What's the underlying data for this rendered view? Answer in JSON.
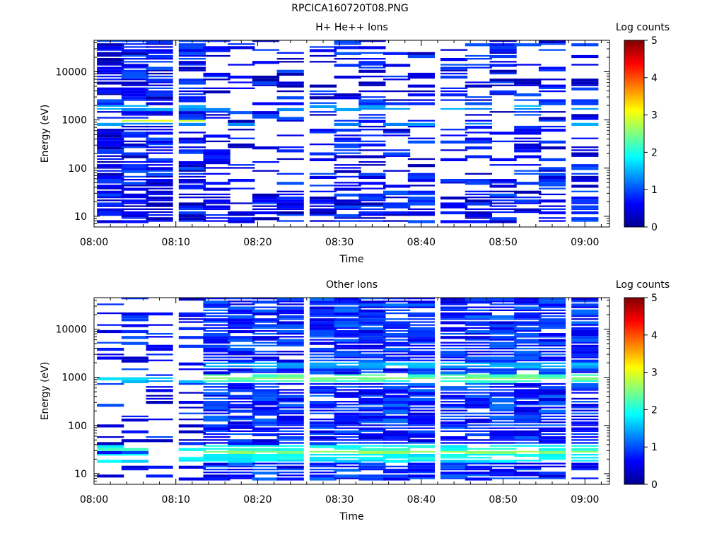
{
  "figure": {
    "title": "RPCICA160720T08.PNG"
  },
  "chart_data": [
    {
      "type": "heatmap",
      "title": "H+ He++ Ions",
      "xlabel": "Time",
      "ylabel": "Energy (eV)",
      "x_ticks": [
        "08:00",
        "08:10",
        "08:20",
        "08:30",
        "08:40",
        "08:50",
        "09:00"
      ],
      "x_range": [
        "08:00",
        "09:03"
      ],
      "y_ticks": [
        "10",
        "100",
        "1000",
        "10000"
      ],
      "y_range": [
        6,
        45000
      ],
      "y_scale": "log",
      "colorbar": {
        "label": "Log counts",
        "ticks": [
          "0",
          "1",
          "2",
          "3",
          "4",
          "5"
        ],
        "range": [
          0,
          5
        ]
      },
      "time_columns": [
        "08:02",
        "08:05",
        "08:08",
        "08:12",
        "08:15",
        "08:18",
        "08:21",
        "08:24",
        "08:28",
        "08:31",
        "08:34",
        "08:37",
        "08:40",
        "08:44",
        "08:47",
        "08:50",
        "08:53",
        "08:56",
        "09:00"
      ],
      "bands": [
        {
          "energy": 1800,
          "value": 1.5,
          "start": 0,
          "end": 18
        },
        {
          "energy": 920,
          "value": 2.8,
          "start": 0,
          "end": 3
        },
        {
          "energy": 830,
          "value": 1.3,
          "start": 0,
          "end": 18
        },
        {
          "energy": 2000,
          "value": 1.0,
          "start": 8,
          "end": 18
        }
      ],
      "activity": [
        0.85,
        0.85,
        0.85,
        0.85,
        0.3,
        0.38,
        0.38,
        0.4,
        0.35,
        0.5,
        0.5,
        0.35,
        0.45,
        0.4,
        0.45,
        0.5,
        0.5,
        0.45,
        0.45
      ]
    },
    {
      "type": "heatmap",
      "title": "Other Ions",
      "xlabel": "Time",
      "ylabel": "Energy (eV)",
      "x_ticks": [
        "08:00",
        "08:10",
        "08:20",
        "08:30",
        "08:40",
        "08:50",
        "09:00"
      ],
      "x_range": [
        "08:00",
        "09:03"
      ],
      "y_ticks": [
        "10",
        "100",
        "1000",
        "10000"
      ],
      "y_range": [
        6,
        45000
      ],
      "y_scale": "log",
      "colorbar": {
        "label": "Log counts",
        "ticks": [
          "0",
          "1",
          "2",
          "3",
          "4",
          "5"
        ],
        "range": [
          0,
          5
        ]
      },
      "time_columns": [
        "08:02",
        "08:05",
        "08:08",
        "08:12",
        "08:15",
        "08:18",
        "08:21",
        "08:24",
        "08:28",
        "08:31",
        "08:34",
        "08:37",
        "08:40",
        "08:44",
        "08:47",
        "08:50",
        "08:53",
        "08:56",
        "09:00"
      ],
      "bands": [
        {
          "energy": 880,
          "value": 1.6,
          "start": 0,
          "end": 3
        },
        {
          "energy": 960,
          "value": 2.4,
          "start": 4,
          "end": 18
        },
        {
          "energy": 800,
          "value": 2.0,
          "start": 4,
          "end": 18
        },
        {
          "energy": 1800,
          "value": 1.5,
          "start": 4,
          "end": 18
        },
        {
          "energy": 33,
          "value": 2.0,
          "start": 0,
          "end": 18
        },
        {
          "energy": 27,
          "value": 2.5,
          "start": 4,
          "end": 18
        },
        {
          "energy": 22,
          "value": 1.9,
          "start": 0,
          "end": 18
        },
        {
          "energy": 18,
          "value": 1.6,
          "start": 0,
          "end": 18
        }
      ],
      "activity": [
        0.35,
        0.35,
        0.35,
        0.4,
        0.95,
        0.95,
        0.95,
        0.95,
        0.95,
        0.95,
        0.95,
        0.95,
        0.95,
        0.95,
        0.95,
        0.95,
        0.95,
        0.95,
        0.95
      ]
    }
  ]
}
